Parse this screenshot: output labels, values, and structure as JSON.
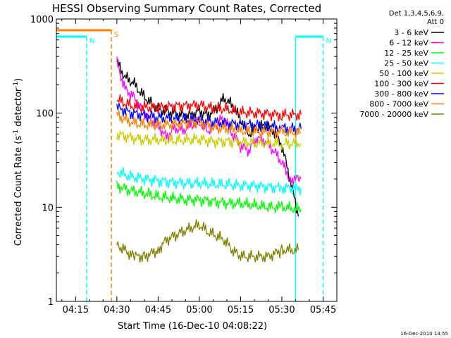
{
  "chart_data": {
    "type": "line",
    "title": "HESSI Observing Summary Count Rates, Corrected",
    "xlabel": "Start Time (16-Dec-10 04:08:22)",
    "ylabel_main": "Corrected Count Rate (s",
    "ylabel_sup1": "-1",
    "ylabel_mid": " detector",
    "ylabel_sup2": "-1",
    "ylabel_end": ")",
    "yscale": "log",
    "ylim": [
      1,
      1000
    ],
    "xlim": [
      "04:08",
      "05:50"
    ],
    "x_ticks": [
      "04:15",
      "04:30",
      "04:45",
      "05:00",
      "05:15",
      "05:30",
      "05:45"
    ],
    "y_ticks": [
      "1",
      "10",
      "100",
      "1000"
    ],
    "legend_header": [
      "Det 1,3,4,5,6,9,",
      "Att 0"
    ],
    "legend_position": "right",
    "timestamp": "16-Dec-2010 14:55",
    "flags": [
      {
        "label": "N",
        "color": "#00ffff",
        "start": "04:08",
        "end": "04:19",
        "level": 650
      },
      {
        "label": "N",
        "color": "#00ffff",
        "start": "05:35",
        "end": "05:45",
        "level": 650
      },
      {
        "label": "S",
        "color": "#ff8000",
        "start": "04:08",
        "end": "04:28",
        "level": 760
      }
    ],
    "series": [
      {
        "name": "3 - 6 keV",
        "color": "#000000",
        "points": [
          [
            "04:30",
            350
          ],
          [
            "04:33",
            240
          ],
          [
            "04:36",
            210
          ],
          [
            "04:39",
            160
          ],
          [
            "04:42",
            130
          ],
          [
            "04:45",
            110
          ],
          [
            "04:48",
            105
          ],
          [
            "04:51",
            100
          ],
          [
            "04:54",
            95
          ],
          [
            "04:57",
            95
          ],
          [
            "05:00",
            105
          ],
          [
            "05:03",
            95
          ],
          [
            "05:06",
            110
          ],
          [
            "05:09",
            145
          ],
          [
            "05:12",
            120
          ],
          [
            "05:15",
            85
          ],
          [
            "05:18",
            60
          ],
          [
            "05:21",
            70
          ],
          [
            "05:24",
            75
          ],
          [
            "05:27",
            65
          ],
          [
            "05:30",
            45
          ],
          [
            "05:33",
            20
          ],
          [
            "05:36",
            8
          ]
        ]
      },
      {
        "name": "6 - 12 keV",
        "color": "#ff00ff",
        "points": [
          [
            "04:30",
            340
          ],
          [
            "04:33",
            180
          ],
          [
            "04:36",
            150
          ],
          [
            "04:39",
            110
          ],
          [
            "04:42",
            85
          ],
          [
            "04:45",
            75
          ],
          [
            "04:48",
            55
          ],
          [
            "04:51",
            70
          ],
          [
            "04:54",
            65
          ],
          [
            "04:57",
            75
          ],
          [
            "05:00",
            80
          ],
          [
            "05:03",
            65
          ],
          [
            "05:06",
            75
          ],
          [
            "05:09",
            90
          ],
          [
            "05:12",
            60
          ],
          [
            "05:15",
            45
          ],
          [
            "05:18",
            40
          ],
          [
            "05:21",
            55
          ],
          [
            "05:24",
            50
          ],
          [
            "05:27",
            40
          ],
          [
            "05:30",
            30
          ],
          [
            "05:33",
            20
          ],
          [
            "05:37",
            20
          ]
        ]
      },
      {
        "name": "12 - 25 keV",
        "color": "#00ff00",
        "points": [
          [
            "04:30",
            17
          ],
          [
            "04:35",
            15
          ],
          [
            "04:40",
            14
          ],
          [
            "04:45",
            13
          ],
          [
            "04:50",
            12.5
          ],
          [
            "04:55",
            12
          ],
          [
            "05:00",
            12
          ],
          [
            "05:05",
            11.5
          ],
          [
            "05:10",
            11
          ],
          [
            "05:15",
            11
          ],
          [
            "05:20",
            10.5
          ],
          [
            "05:25",
            10
          ],
          [
            "05:30",
            10
          ],
          [
            "05:37",
            9.5
          ]
        ]
      },
      {
        "name": "25 - 50 keV",
        "color": "#00ffff",
        "points": [
          [
            "04:30",
            24
          ],
          [
            "04:35",
            21
          ],
          [
            "04:40",
            20
          ],
          [
            "04:45",
            19
          ],
          [
            "04:50",
            18.5
          ],
          [
            "04:55",
            18
          ],
          [
            "05:00",
            18
          ],
          [
            "05:05",
            17.5
          ],
          [
            "05:10",
            17.5
          ],
          [
            "05:15",
            17
          ],
          [
            "05:20",
            17
          ],
          [
            "05:25",
            16.5
          ],
          [
            "05:30",
            16
          ],
          [
            "05:37",
            16
          ]
        ]
      },
      {
        "name": "50 - 100 keV",
        "color": "#cccc00",
        "points": [
          [
            "04:30",
            60
          ],
          [
            "04:35",
            55
          ],
          [
            "04:40",
            52
          ],
          [
            "04:45",
            52
          ],
          [
            "04:50",
            51
          ],
          [
            "04:55",
            52
          ],
          [
            "05:00",
            53
          ],
          [
            "05:05",
            50
          ],
          [
            "05:10",
            50
          ],
          [
            "05:15",
            49
          ],
          [
            "05:20",
            48
          ],
          [
            "05:25",
            48
          ],
          [
            "05:30",
            47
          ],
          [
            "05:37",
            48
          ]
        ]
      },
      {
        "name": "100 - 300 keV",
        "color": "#ff0000",
        "points": [
          [
            "04:30",
            140
          ],
          [
            "04:35",
            120
          ],
          [
            "04:40",
            115
          ],
          [
            "04:45",
            115
          ],
          [
            "04:50",
            118
          ],
          [
            "04:55",
            120
          ],
          [
            "05:00",
            122
          ],
          [
            "05:05",
            112
          ],
          [
            "05:10",
            110
          ],
          [
            "05:15",
            102
          ],
          [
            "05:20",
            100
          ],
          [
            "05:25",
            98
          ],
          [
            "05:30",
            96
          ],
          [
            "05:37",
            96
          ]
        ]
      },
      {
        "name": "300 - 800 keV",
        "color": "#0000ff",
        "points": [
          [
            "04:30",
            115
          ],
          [
            "04:35",
            100
          ],
          [
            "04:40",
            95
          ],
          [
            "04:45",
            90
          ],
          [
            "04:50",
            88
          ],
          [
            "04:55",
            86
          ],
          [
            "05:00",
            85
          ],
          [
            "05:05",
            80
          ],
          [
            "05:10",
            78
          ],
          [
            "05:15",
            76
          ],
          [
            "05:20",
            75
          ],
          [
            "05:25",
            72
          ],
          [
            "05:30",
            70
          ],
          [
            "05:37",
            68
          ]
        ]
      },
      {
        "name": "800 - 7000 keV",
        "color": "#ff8000",
        "points": [
          [
            "04:30",
            95
          ],
          [
            "04:35",
            80
          ],
          [
            "04:40",
            75
          ],
          [
            "04:45",
            75
          ],
          [
            "04:50",
            76
          ],
          [
            "04:55",
            78
          ],
          [
            "05:00",
            80
          ],
          [
            "05:05",
            70
          ],
          [
            "05:10",
            68
          ],
          [
            "05:15",
            65
          ],
          [
            "05:20",
            64
          ],
          [
            "05:25",
            63
          ],
          [
            "05:30",
            62
          ],
          [
            "05:37",
            62
          ]
        ]
      },
      {
        "name": "7000 - 20000 keV",
        "color": "#808000",
        "points": [
          [
            "04:30",
            4
          ],
          [
            "04:33",
            3.5
          ],
          [
            "04:36",
            3
          ],
          [
            "04:40",
            3
          ],
          [
            "04:45",
            3.5
          ],
          [
            "04:48",
            4.5
          ],
          [
            "04:51",
            5
          ],
          [
            "04:54",
            5.5
          ],
          [
            "04:57",
            6
          ],
          [
            "05:00",
            6.5
          ],
          [
            "05:03",
            5.5
          ],
          [
            "05:06",
            5
          ],
          [
            "05:09",
            4.5
          ],
          [
            "05:12",
            3.5
          ],
          [
            "05:15",
            3
          ],
          [
            "05:20",
            3
          ],
          [
            "05:25",
            3
          ],
          [
            "05:30",
            3.5
          ],
          [
            "05:36",
            3.5
          ]
        ]
      }
    ]
  }
}
